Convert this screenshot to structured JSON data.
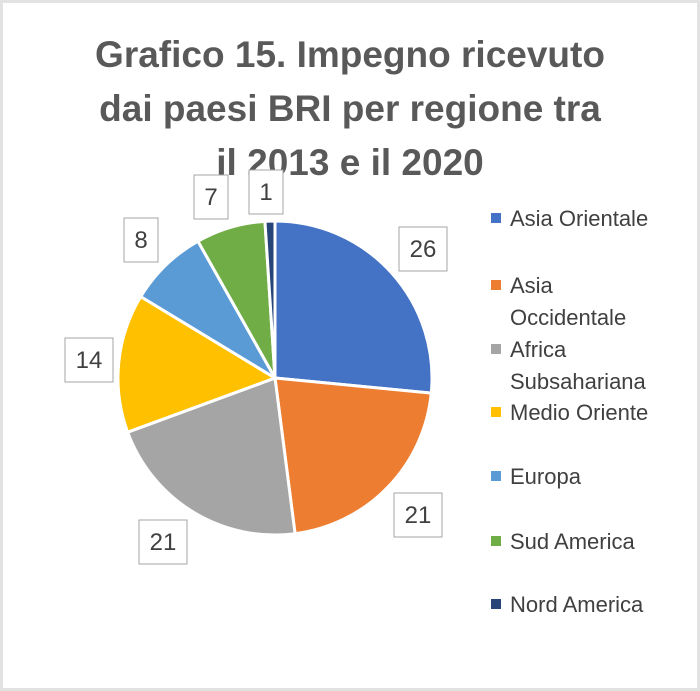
{
  "chart_data": {
    "type": "pie",
    "title_lines": [
      "Grafico 15. Impegno ricevuto",
      "dai paesi BRI per regione tra",
      "il 2013 e il 2020"
    ],
    "categories": [
      "Asia Orientale",
      "Asia Occidentale",
      "Africa Subsahariana",
      "Medio Oriente",
      "Europa",
      "Sud America",
      "Nord America"
    ],
    "values": [
      26,
      21,
      21,
      14,
      8,
      7,
      1
    ],
    "data_labels": [
      "26",
      "21",
      "21",
      "14",
      "8",
      "7",
      "1"
    ],
    "colors": [
      "#4472c4",
      "#ed7d31",
      "#a5a5a5",
      "#ffc000",
      "#5b9bd5",
      "#70ad47",
      "#264478"
    ],
    "legend_position": "right",
    "legend_lines": [
      [
        "Asia Orientale"
      ],
      [
        "Asia",
        "Occidentale"
      ],
      [
        "Africa",
        "Subsahariana"
      ],
      [
        "Medio Oriente"
      ],
      [
        "Europa"
      ],
      [
        "Sud America"
      ],
      [
        "Nord America"
      ]
    ]
  }
}
